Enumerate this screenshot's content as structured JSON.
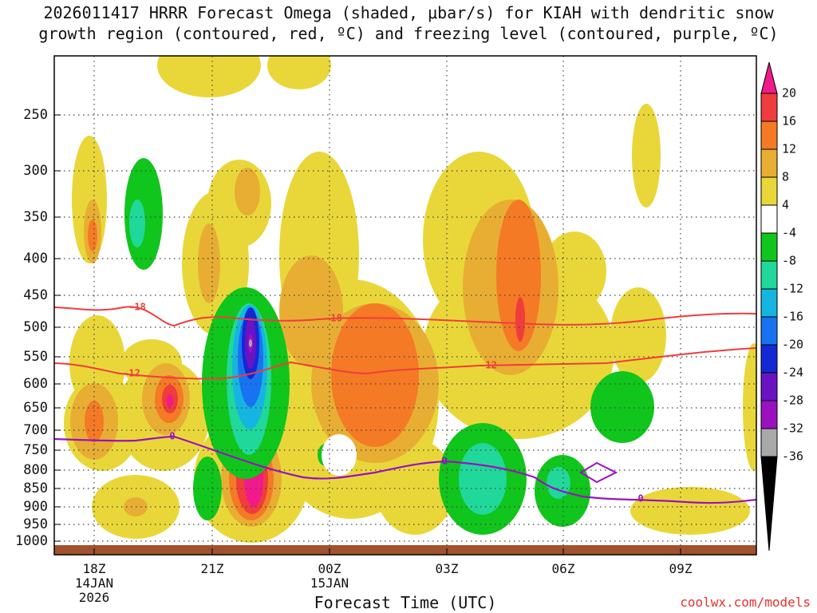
{
  "title": {
    "line1": "2026011417 HRRR Forecast Omega (shaded, μbar/s) for KIAH with dendritic snow",
    "line2": "growth region (contoured, red, ºC) and freezing level (contoured, purple, ºC)"
  },
  "chart_data": {
    "type": "heatmap",
    "xlabel": "Forecast Time (UTC)",
    "ylabel": "",
    "y_ticks": [
      "250",
      "300",
      "350",
      "400",
      "450",
      "500",
      "550",
      "600",
      "650",
      "700",
      "750",
      "800",
      "850",
      "900",
      "950",
      "1000"
    ],
    "y_values": [
      250,
      300,
      350,
      400,
      450,
      500,
      550,
      600,
      650,
      700,
      750,
      800,
      850,
      900,
      950,
      1000
    ],
    "x_ticks": [
      {
        "label": "18Z",
        "sub": [
          "14JAN",
          "2026"
        ]
      },
      {
        "label": "21Z",
        "sub": []
      },
      {
        "label": "00Z",
        "sub": [
          "15JAN"
        ]
      },
      {
        "label": "03Z",
        "sub": []
      },
      {
        "label": "06Z",
        "sub": []
      },
      {
        "label": "09Z",
        "sub": []
      }
    ],
    "colorbar": {
      "levels": [
        "20",
        "16",
        "12",
        "8",
        "4",
        "-4",
        "-8",
        "-12",
        "-16",
        "-20",
        "-24",
        "-28",
        "-32",
        "-36"
      ],
      "colors": [
        "#f0ee3a",
        "#f03c3c",
        "#f47a25",
        "#e8ae33",
        "#e9d73a",
        "#ffffff",
        "#10c51b",
        "#20d89a",
        "#15b5e0",
        "#1873f2",
        "#1428d6",
        "#6a13c4",
        "#9a12c0",
        "#a9a9a9",
        "#000000",
        "#f01a8a"
      ]
    },
    "contours": {
      "dgz_labels": [
        "-18",
        "-12"
      ],
      "freezing_label": "0"
    },
    "color_map": {
      "lightyellow": "#e9d73a",
      "gold": "#e8ae33",
      "orange": "#f47a25",
      "red": "#f03c3c",
      "magenta": "#f01a8a",
      "green": "#10c51b",
      "aqua": "#20d89a",
      "cyan": "#15b5e0",
      "blue": "#1873f2",
      "navy": "#1428d6",
      "purple": "#6a13c4",
      "violet": "#9a12c0",
      "gray": "#a9a9a9",
      "dgz_line": "#f03c3c",
      "frz_line": "#9a12c0",
      "ground": "#a0522d"
    }
  },
  "credit": "coolwx.com/models"
}
